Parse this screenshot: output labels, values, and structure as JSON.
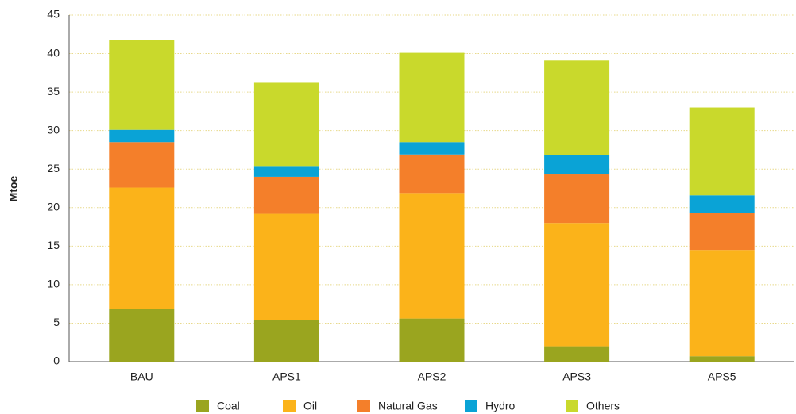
{
  "chart_data": {
    "type": "stacked_bar",
    "y_label": "Mtoe",
    "categories": [
      "BAU",
      "APS1",
      "APS2",
      "APS3",
      "APS5"
    ],
    "series": [
      {
        "name": "Coal",
        "color": "#9aa51f",
        "values": [
          6.8,
          5.4,
          5.6,
          2.0,
          0.7
        ]
      },
      {
        "name": "Oil",
        "color": "#fbb31a",
        "values": [
          15.8,
          13.8,
          16.3,
          16.0,
          13.8
        ]
      },
      {
        "name": "Natural Gas",
        "color": "#f47f2a",
        "values": [
          5.9,
          4.8,
          5.0,
          6.3,
          4.8
        ]
      },
      {
        "name": "Hydro",
        "color": "#0aa3d6",
        "values": [
          1.6,
          1.4,
          1.6,
          2.5,
          2.3
        ]
      },
      {
        "name": "Others",
        "color": "#c9d92c",
        "values": [
          11.7,
          10.8,
          11.6,
          12.3,
          11.4
        ]
      }
    ],
    "ylim": [
      0,
      45
    ],
    "yticks": [
      0,
      5,
      10,
      15,
      20,
      25,
      30,
      35,
      40,
      45
    ],
    "grid": true,
    "legend": "bottom"
  }
}
